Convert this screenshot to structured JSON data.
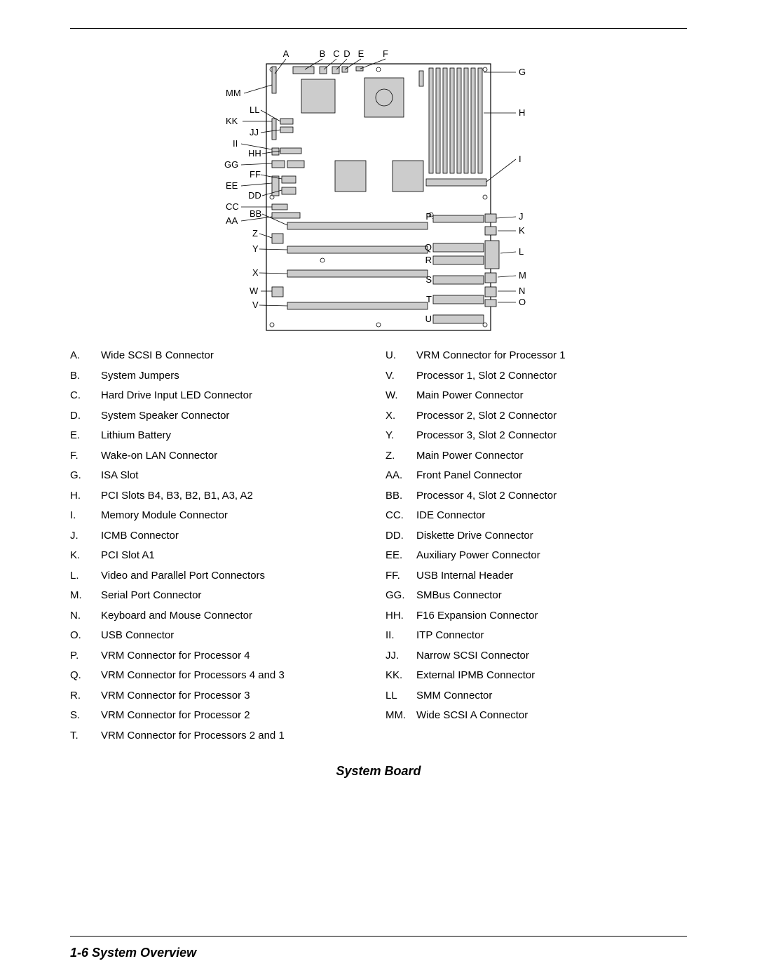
{
  "figure_title": "System Board",
  "footer": "1-6   System Overview",
  "diagram": {
    "type": "labeled-diagram",
    "board_stroke": "#000000",
    "board_fill": "#ffffff",
    "component_fill": "#cccccc",
    "component_stroke": "#000000",
    "label_fontsize": 13,
    "top_labels": [
      "A",
      "B",
      "C",
      "D",
      "E",
      "F"
    ],
    "right_labels": [
      "G",
      "H",
      "I",
      "J",
      "K",
      "L",
      "M",
      "N",
      "O"
    ],
    "inner_right_labels": [
      "P",
      "Q",
      "R",
      "S",
      "T",
      "U"
    ],
    "left_outer_labels": [
      "MM",
      "KK",
      "II",
      "GG",
      "EE",
      "CC",
      "AA"
    ],
    "left_inner_labels": [
      "LL",
      "JJ",
      "HH",
      "FF",
      "DD",
      "BB",
      "Z",
      "Y",
      "X",
      "W",
      "V"
    ]
  },
  "legend_left": [
    {
      "letter": "A.",
      "desc": "Wide SCSI B Connector"
    },
    {
      "letter": "B.",
      "desc": "System Jumpers"
    },
    {
      "letter": "C.",
      "desc": "Hard Drive Input LED Connector"
    },
    {
      "letter": "D.",
      "desc": "System Speaker Connector"
    },
    {
      "letter": "E.",
      "desc": "Lithium Battery"
    },
    {
      "letter": "F.",
      "desc": "Wake-on LAN Connector"
    },
    {
      "letter": "G.",
      "desc": "ISA Slot"
    },
    {
      "letter": "H.",
      "desc": "PCI Slots B4, B3, B2, B1, A3, A2"
    },
    {
      "letter": "I.",
      "desc": "Memory Module Connector"
    },
    {
      "letter": "J.",
      "desc": "ICMB Connector"
    },
    {
      "letter": "K.",
      "desc": "PCI Slot A1"
    },
    {
      "letter": "L.",
      "desc": "Video and Parallel Port Connectors"
    },
    {
      "letter": "M.",
      "desc": "Serial Port Connector"
    },
    {
      "letter": "N.",
      "desc": "Keyboard and Mouse Connector"
    },
    {
      "letter": "O.",
      "desc": "USB Connector"
    },
    {
      "letter": "P.",
      "desc": "VRM Connector for Processor 4"
    },
    {
      "letter": "Q.",
      "desc": "VRM Connector for Processors 4 and 3"
    },
    {
      "letter": "R.",
      "desc": "VRM Connector for Processor 3"
    },
    {
      "letter": "S.",
      "desc": "VRM Connector for Processor 2"
    },
    {
      "letter": "T.",
      "desc": "VRM Connector for Processors 2 and 1"
    }
  ],
  "legend_right": [
    {
      "letter": "U.",
      "desc": "VRM Connector for Processor 1"
    },
    {
      "letter": "V.",
      "desc": "Processor 1, Slot 2 Connector"
    },
    {
      "letter": "W.",
      "desc": "Main Power Connector"
    },
    {
      "letter": "X.",
      "desc": "Processor 2, Slot 2 Connector"
    },
    {
      "letter": "Y.",
      "desc": "Processor 3, Slot 2 Connector"
    },
    {
      "letter": "Z.",
      "desc": "Main Power Connector"
    },
    {
      "letter": "AA.",
      "desc": "Front Panel Connector"
    },
    {
      "letter": "BB.",
      "desc": "Processor 4, Slot 2 Connector"
    },
    {
      "letter": "CC.",
      "desc": "IDE Connector"
    },
    {
      "letter": "DD.",
      "desc": "Diskette Drive Connector"
    },
    {
      "letter": "EE.",
      "desc": "Auxiliary Power Connector"
    },
    {
      "letter": "FF.",
      "desc": "USB Internal Header"
    },
    {
      "letter": "GG.",
      "desc": "SMBus Connector"
    },
    {
      "letter": "HH.",
      "desc": "F16 Expansion Connector"
    },
    {
      "letter": "II.",
      "desc": "ITP Connector"
    },
    {
      "letter": "JJ.",
      "desc": "Narrow SCSI Connector"
    },
    {
      "letter": "KK.",
      "desc": "External IPMB Connector"
    },
    {
      "letter": "LL",
      "desc": "SMM Connector"
    },
    {
      "letter": "MM.",
      "desc": "Wide SCSI A Connector"
    }
  ]
}
